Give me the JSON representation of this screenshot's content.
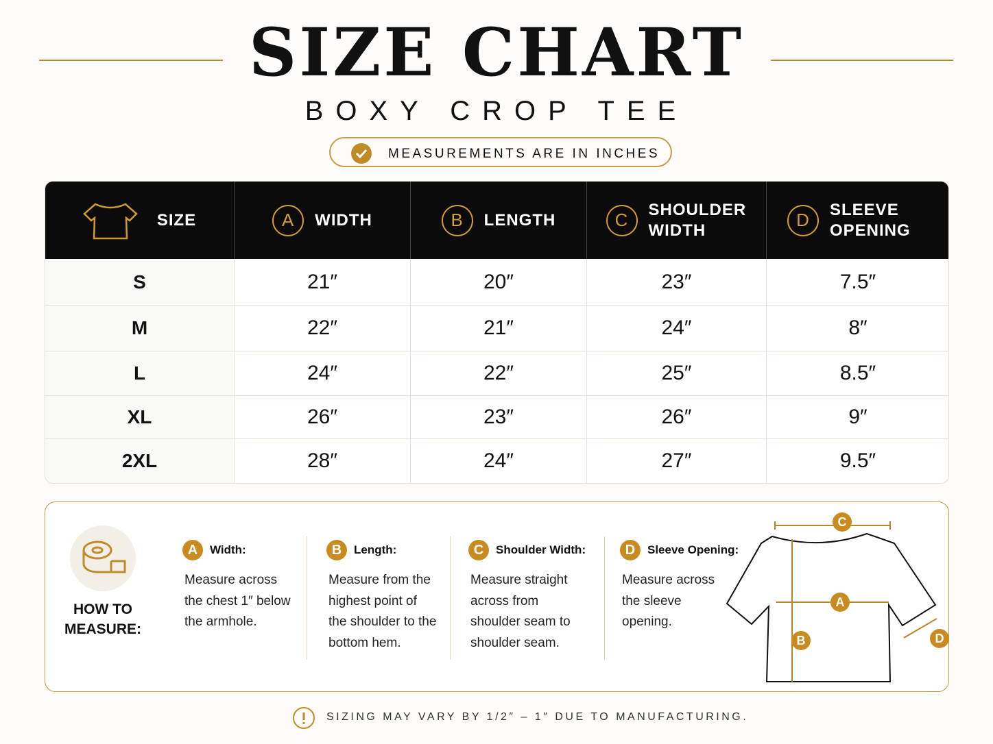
{
  "header": {
    "title": "SIZE CHART",
    "subtitle": "BOXY CROP TEE",
    "badge": "MEASUREMENTS ARE IN INCHES"
  },
  "table": {
    "columns": [
      {
        "label": "SIZE"
      },
      {
        "letter": "A",
        "label": "WIDTH"
      },
      {
        "letter": "B",
        "label": "LENGTH"
      },
      {
        "letter": "C",
        "label": "SHOULDER WIDTH"
      },
      {
        "letter": "D",
        "label": "SLEEVE OPENING"
      }
    ],
    "rows": [
      [
        "S",
        "21″",
        "20″",
        "23″",
        "7.5″"
      ],
      [
        "M",
        "22″",
        "21″",
        "24″",
        "8″"
      ],
      [
        "L",
        "24″",
        "22″",
        "25″",
        "8.5″"
      ],
      [
        "XL",
        "26″",
        "23″",
        "26″",
        "9″"
      ],
      [
        "2XL",
        "28″",
        "24″",
        "27″",
        "9.5″"
      ]
    ]
  },
  "guide": {
    "title": "HOW TO MEASURE:",
    "items": [
      {
        "letter": "A",
        "title": "Width:",
        "text": "Measure across the chest 1″ below the armhole."
      },
      {
        "letter": "B",
        "title": "Length:",
        "text": "Measure from the highest point of the shoulder to the bottom hem."
      },
      {
        "letter": "C",
        "title": "Shoulder Width:",
        "text": "Measure straight across from shoulder seam to shoulder seam."
      },
      {
        "letter": "D",
        "title": "Sleeve Opening:",
        "text": "Measure across the sleeve opening."
      }
    ]
  },
  "footer": {
    "note": "SIZING MAY VARY BY 1/2″ – 1″ DUE TO MANUFACTURING."
  }
}
